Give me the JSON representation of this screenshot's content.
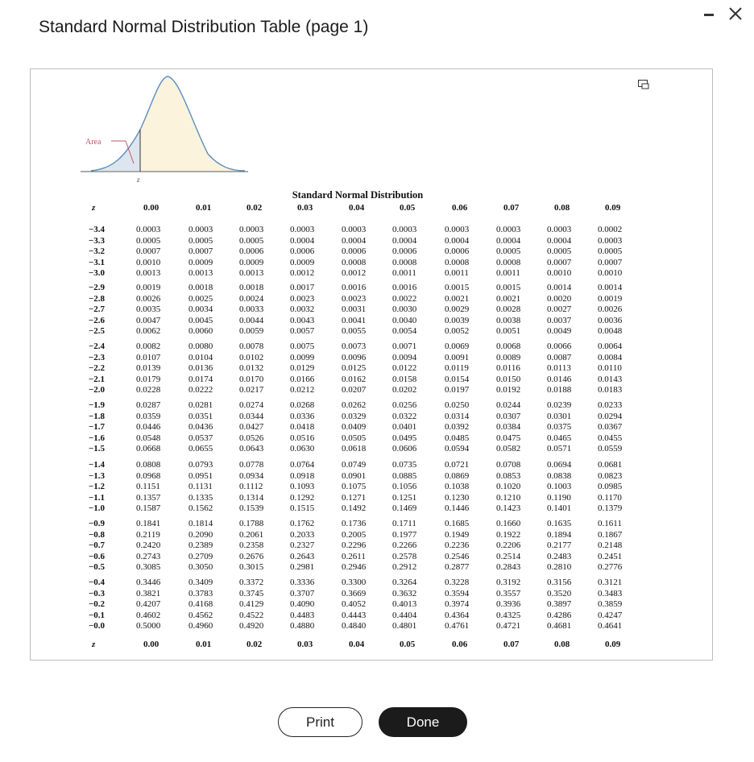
{
  "window": {
    "title": "Standard Normal Distribution Table (page 1)",
    "minimize_icon": "minimize-icon",
    "close_label": "✕"
  },
  "figure": {
    "area_label": "Area",
    "z_label": "z"
  },
  "table": {
    "title": "Standard Normal Distribution",
    "z_header": "z",
    "columns": [
      "0.00",
      "0.01",
      "0.02",
      "0.03",
      "0.04",
      "0.05",
      "0.06",
      "0.07",
      "0.08",
      "0.09"
    ],
    "groups": [
      {
        "rows": [
          {
            "z": "−3.4",
            "values": [
              "0.0003",
              "0.0003",
              "0.0003",
              "0.0003",
              "0.0003",
              "0.0003",
              "0.0003",
              "0.0003",
              "0.0003",
              "0.0002"
            ]
          },
          {
            "z": "−3.3",
            "values": [
              "0.0005",
              "0.0005",
              "0.0005",
              "0.0004",
              "0.0004",
              "0.0004",
              "0.0004",
              "0.0004",
              "0.0004",
              "0.0003"
            ]
          },
          {
            "z": "−3.2",
            "values": [
              "0.0007",
              "0.0007",
              "0.0006",
              "0.0006",
              "0.0006",
              "0.0006",
              "0.0006",
              "0.0005",
              "0.0005",
              "0.0005"
            ]
          },
          {
            "z": "−3.1",
            "values": [
              "0.0010",
              "0.0009",
              "0.0009",
              "0.0009",
              "0.0008",
              "0.0008",
              "0.0008",
              "0.0008",
              "0.0007",
              "0.0007"
            ]
          },
          {
            "z": "−3.0",
            "values": [
              "0.0013",
              "0.0013",
              "0.0013",
              "0.0012",
              "0.0012",
              "0.0011",
              "0.0011",
              "0.0011",
              "0.0010",
              "0.0010"
            ]
          }
        ]
      },
      {
        "rows": [
          {
            "z": "−2.9",
            "values": [
              "0.0019",
              "0.0018",
              "0.0018",
              "0.0017",
              "0.0016",
              "0.0016",
              "0.0015",
              "0.0015",
              "0.0014",
              "0.0014"
            ]
          },
          {
            "z": "−2.8",
            "values": [
              "0.0026",
              "0.0025",
              "0.0024",
              "0.0023",
              "0.0023",
              "0.0022",
              "0.0021",
              "0.0021",
              "0.0020",
              "0.0019"
            ]
          },
          {
            "z": "−2.7",
            "values": [
              "0.0035",
              "0.0034",
              "0.0033",
              "0.0032",
              "0.0031",
              "0.0030",
              "0.0029",
              "0.0028",
              "0.0027",
              "0.0026"
            ]
          },
          {
            "z": "−2.6",
            "values": [
              "0.0047",
              "0.0045",
              "0.0044",
              "0.0043",
              "0.0041",
              "0.0040",
              "0.0039",
              "0.0038",
              "0.0037",
              "0.0036"
            ]
          },
          {
            "z": "−2.5",
            "values": [
              "0.0062",
              "0.0060",
              "0.0059",
              "0.0057",
              "0.0055",
              "0.0054",
              "0.0052",
              "0.0051",
              "0.0049",
              "0.0048"
            ]
          }
        ]
      },
      {
        "rows": [
          {
            "z": "−2.4",
            "values": [
              "0.0082",
              "0.0080",
              "0.0078",
              "0.0075",
              "0.0073",
              "0.0071",
              "0.0069",
              "0.0068",
              "0.0066",
              "0.0064"
            ]
          },
          {
            "z": "−2.3",
            "values": [
              "0.0107",
              "0.0104",
              "0.0102",
              "0.0099",
              "0.0096",
              "0.0094",
              "0.0091",
              "0.0089",
              "0.0087",
              "0.0084"
            ]
          },
          {
            "z": "−2.2",
            "values": [
              "0.0139",
              "0.0136",
              "0.0132",
              "0.0129",
              "0.0125",
              "0.0122",
              "0.0119",
              "0.0116",
              "0.0113",
              "0.0110"
            ]
          },
          {
            "z": "−2.1",
            "values": [
              "0.0179",
              "0.0174",
              "0.0170",
              "0.0166",
              "0.0162",
              "0.0158",
              "0.0154",
              "0.0150",
              "0.0146",
              "0.0143"
            ]
          },
          {
            "z": "−2.0",
            "values": [
              "0.0228",
              "0.0222",
              "0.0217",
              "0.0212",
              "0.0207",
              "0.0202",
              "0.0197",
              "0.0192",
              "0.0188",
              "0.0183"
            ]
          }
        ]
      },
      {
        "rows": [
          {
            "z": "−1.9",
            "values": [
              "0.0287",
              "0.0281",
              "0.0274",
              "0.0268",
              "0.0262",
              "0.0256",
              "0.0250",
              "0.0244",
              "0.0239",
              "0.0233"
            ]
          },
          {
            "z": "−1.8",
            "values": [
              "0.0359",
              "0.0351",
              "0.0344",
              "0.0336",
              "0.0329",
              "0.0322",
              "0.0314",
              "0.0307",
              "0.0301",
              "0.0294"
            ]
          },
          {
            "z": "−1.7",
            "values": [
              "0.0446",
              "0.0436",
              "0.0427",
              "0.0418",
              "0.0409",
              "0.0401",
              "0.0392",
              "0.0384",
              "0.0375",
              "0.0367"
            ]
          },
          {
            "z": "−1.6",
            "values": [
              "0.0548",
              "0.0537",
              "0.0526",
              "0.0516",
              "0.0505",
              "0.0495",
              "0.0485",
              "0.0475",
              "0.0465",
              "0.0455"
            ]
          },
          {
            "z": "−1.5",
            "values": [
              "0.0668",
              "0.0655",
              "0.0643",
              "0.0630",
              "0.0618",
              "0.0606",
              "0.0594",
              "0.0582",
              "0.0571",
              "0.0559"
            ]
          }
        ]
      },
      {
        "rows": [
          {
            "z": "−1.4",
            "values": [
              "0.0808",
              "0.0793",
              "0.0778",
              "0.0764",
              "0.0749",
              "0.0735",
              "0.0721",
              "0.0708",
              "0.0694",
              "0.0681"
            ]
          },
          {
            "z": "−1.3",
            "values": [
              "0.0968",
              "0.0951",
              "0.0934",
              "0.0918",
              "0.0901",
              "0.0885",
              "0.0869",
              "0.0853",
              "0.0838",
              "0.0823"
            ]
          },
          {
            "z": "−1.2",
            "values": [
              "0.1151",
              "0.1131",
              "0.1112",
              "0.1093",
              "0.1075",
              "0.1056",
              "0.1038",
              "0.1020",
              "0.1003",
              "0.0985"
            ]
          },
          {
            "z": "−1.1",
            "values": [
              "0.1357",
              "0.1335",
              "0.1314",
              "0.1292",
              "0.1271",
              "0.1251",
              "0.1230",
              "0.1210",
              "0.1190",
              "0.1170"
            ]
          },
          {
            "z": "−1.0",
            "values": [
              "0.1587",
              "0.1562",
              "0.1539",
              "0.1515",
              "0.1492",
              "0.1469",
              "0.1446",
              "0.1423",
              "0.1401",
              "0.1379"
            ]
          }
        ]
      },
      {
        "rows": [
          {
            "z": "−0.9",
            "values": [
              "0.1841",
              "0.1814",
              "0.1788",
              "0.1762",
              "0.1736",
              "0.1711",
              "0.1685",
              "0.1660",
              "0.1635",
              "0.1611"
            ]
          },
          {
            "z": "−0.8",
            "values": [
              "0.2119",
              "0.2090",
              "0.2061",
              "0.2033",
              "0.2005",
              "0.1977",
              "0.1949",
              "0.1922",
              "0.1894",
              "0.1867"
            ]
          },
          {
            "z": "−0.7",
            "values": [
              "0.2420",
              "0.2389",
              "0.2358",
              "0.2327",
              "0.2296",
              "0.2266",
              "0.2236",
              "0.2206",
              "0.2177",
              "0.2148"
            ]
          },
          {
            "z": "−0.6",
            "values": [
              "0.2743",
              "0.2709",
              "0.2676",
              "0.2643",
              "0.2611",
              "0.2578",
              "0.2546",
              "0.2514",
              "0.2483",
              "0.2451"
            ]
          },
          {
            "z": "−0.5",
            "values": [
              "0.3085",
              "0.3050",
              "0.3015",
              "0.2981",
              "0.2946",
              "0.2912",
              "0.2877",
              "0.2843",
              "0.2810",
              "0.2776"
            ]
          }
        ]
      },
      {
        "rows": [
          {
            "z": "−0.4",
            "values": [
              "0.3446",
              "0.3409",
              "0.3372",
              "0.3336",
              "0.3300",
              "0.3264",
              "0.3228",
              "0.3192",
              "0.3156",
              "0.3121"
            ]
          },
          {
            "z": "−0.3",
            "values": [
              "0.3821",
              "0.3783",
              "0.3745",
              "0.3707",
              "0.3669",
              "0.3632",
              "0.3594",
              "0.3557",
              "0.3520",
              "0.3483"
            ]
          },
          {
            "z": "−0.2",
            "values": [
              "0.4207",
              "0.4168",
              "0.4129",
              "0.4090",
              "0.4052",
              "0.4013",
              "0.3974",
              "0.3936",
              "0.3897",
              "0.3859"
            ]
          },
          {
            "z": "−0.1",
            "values": [
              "0.4602",
              "0.4562",
              "0.4522",
              "0.4483",
              "0.4443",
              "0.4404",
              "0.4364",
              "0.4325",
              "0.4286",
              "0.4247"
            ]
          },
          {
            "z": "−0.0",
            "values": [
              "0.5000",
              "0.4960",
              "0.4920",
              "0.4880",
              "0.4840",
              "0.4801",
              "0.4761",
              "0.4721",
              "0.4681",
              "0.4641"
            ]
          }
        ]
      }
    ]
  },
  "buttons": {
    "print_label": "Print",
    "done_label": "Done"
  },
  "colors": {
    "shaded_area": "#fbf3dc",
    "done_bg": "#1b1b1b"
  }
}
